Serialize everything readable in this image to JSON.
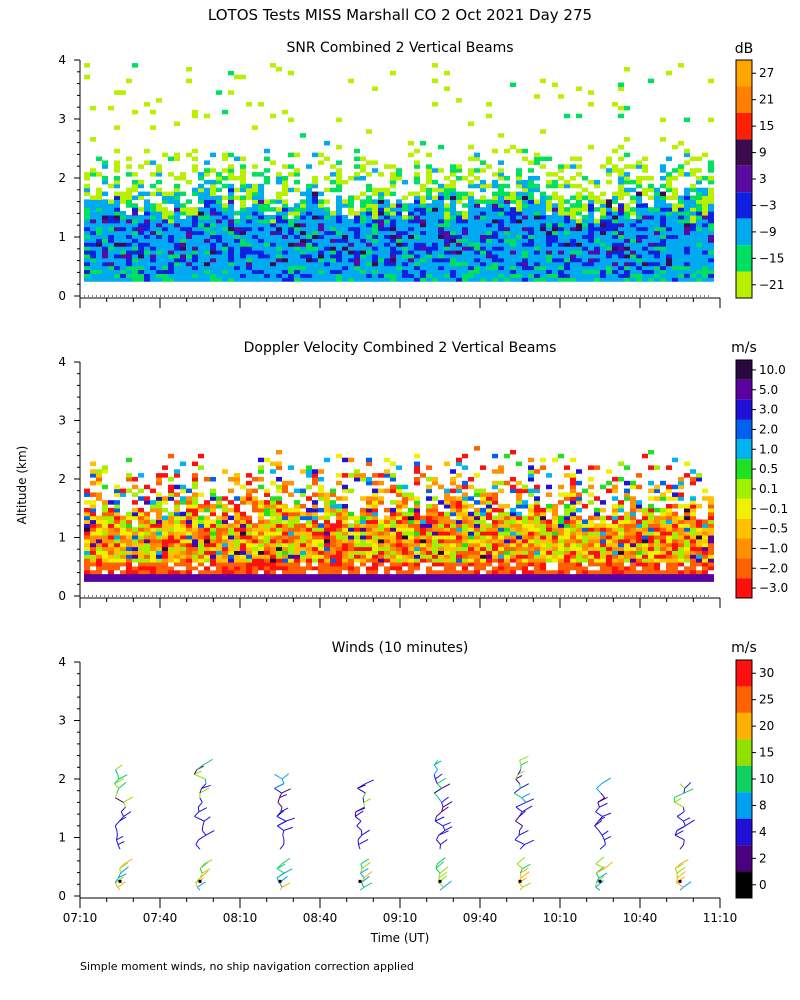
{
  "figure": {
    "title": "LOTOS Tests MISS Marshall CO   2 Oct 2021 Day 275",
    "ylabel": "Altitude (km)",
    "xlabel": "Time (UT)",
    "footnote": "Simple moment winds, no ship navigation correction applied"
  },
  "chart_data": [
    {
      "type": "heatmap",
      "title": "SNR Combined 2 Vertical Beams",
      "xlabel": "",
      "ylabel": "Altitude (km)",
      "x_ticks": [
        "07:10",
        "07:40",
        "08:10",
        "08:40",
        "09:10",
        "09:40",
        "10:10",
        "10:40",
        "11:10"
      ],
      "y_ticks": [
        "0",
        "1",
        "2",
        "3",
        "4"
      ],
      "ylim": [
        0,
        4
      ],
      "colorbar": {
        "unit": "dB",
        "labels": [
          "27",
          "21",
          "15",
          "9",
          "3",
          "−3",
          "−9",
          "−15",
          "−21"
        ],
        "colors": [
          "#ffa500",
          "#ff7f00",
          "#ff2000",
          "#3c0a4e",
          "#5a0aa0",
          "#1020e0",
          "#00aaf0",
          "#00e060",
          "#b8f000"
        ]
      },
      "profile": {
        "dense_top_km": 1.5,
        "plume_top_km": 2.6,
        "sparse_top_km": 3.9,
        "bottom_km": 0.25
      }
    },
    {
      "type": "heatmap",
      "title": "Doppler Velocity Combined 2 Vertical Beams",
      "xlabel": "",
      "ylabel": "Altitude (km)",
      "x_ticks": [
        "07:10",
        "07:40",
        "08:10",
        "08:40",
        "09:10",
        "09:40",
        "10:10",
        "10:40",
        "11:10"
      ],
      "y_ticks": [
        "0",
        "1",
        "2",
        "3",
        "4"
      ],
      "ylim": [
        0,
        4
      ],
      "colorbar": {
        "unit": "m/s",
        "labels": [
          "10.0",
          "5.0",
          "3.0",
          "2.0",
          "1.0",
          "0.5",
          "0.1",
          "−0.1",
          "−0.5",
          "−1.0",
          "−2.0",
          "−3.0"
        ],
        "colors": [
          "#2a0a3e",
          "#5a00a0",
          "#2010d8",
          "#0060f0",
          "#00b4f0",
          "#20e020",
          "#a0f000",
          "#f0f000",
          "#ffc000",
          "#ff9000",
          "#ff6000",
          "#ff1010"
        ]
      },
      "profile": {
        "dense_top_km": 1.4,
        "plume_top_km": 2.5,
        "bottom_km": 0.25
      }
    },
    {
      "type": "scatter",
      "title": "Winds (10 minutes)",
      "xlabel": "Time (UT)",
      "ylabel": "",
      "x_ticks": [
        "07:10",
        "07:40",
        "08:10",
        "08:40",
        "09:10",
        "09:40",
        "10:10",
        "10:40",
        "11:10"
      ],
      "y_ticks": [
        "0",
        "1",
        "2",
        "3",
        "4"
      ],
      "ylim": [
        0,
        4
      ],
      "colorbar": {
        "unit": "m/s",
        "labels": [
          "30",
          "25",
          "20",
          "15",
          "10",
          "8",
          "4",
          "2",
          "0"
        ],
        "colors": [
          "#ff1010",
          "#ff6000",
          "#ffb000",
          "#90e000",
          "#10d060",
          "#00a0f0",
          "#2010d8",
          "#4a0080",
          "#000000"
        ]
      },
      "profiles": [
        {
          "time": "07:25",
          "top_km": 2.3
        },
        {
          "time": "07:55",
          "top_km": 2.3
        },
        {
          "time": "08:25",
          "top_km": 2.1
        },
        {
          "time": "08:55",
          "top_km": 2.0
        },
        {
          "time": "09:25",
          "top_km": 2.4
        },
        {
          "time": "09:55",
          "top_km": 2.4
        },
        {
          "time": "10:25",
          "top_km": 2.0
        },
        {
          "time": "10:55",
          "top_km": 2.0
        }
      ]
    }
  ]
}
